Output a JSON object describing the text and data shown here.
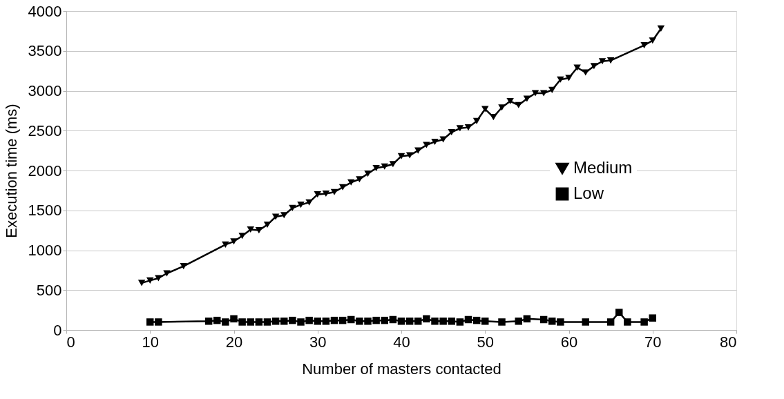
{
  "chart_data": {
    "type": "line",
    "xlabel": "Number of masters contacted",
    "ylabel": "Execution time (ms)",
    "xlim": [
      0,
      80
    ],
    "xticks": [
      0,
      10,
      20,
      30,
      40,
      50,
      60,
      70,
      80
    ],
    "ylim": [
      0,
      4000
    ],
    "yticks": [
      0,
      500,
      1000,
      1500,
      2000,
      2500,
      3000,
      3500,
      4000
    ],
    "grid": "y",
    "legend": "right",
    "line_style": "solid",
    "series": [
      {
        "name": "Medium",
        "color": "#000000",
        "marker": "triangle",
        "x": [
          9,
          10,
          11,
          12,
          14,
          19,
          20,
          21,
          22,
          23,
          24,
          25,
          26,
          27,
          28,
          29,
          30,
          31,
          32,
          33,
          34,
          35,
          36,
          37,
          38,
          39,
          40,
          41,
          42,
          43,
          44,
          45,
          46,
          47,
          48,
          49,
          50,
          51,
          52,
          53,
          54,
          55,
          56,
          57,
          58,
          59,
          60,
          61,
          62,
          63,
          64,
          65,
          69,
          70,
          71
        ],
        "values": [
          590,
          620,
          650,
          710,
          800,
          1070,
          1110,
          1180,
          1260,
          1250,
          1320,
          1420,
          1440,
          1530,
          1570,
          1600,
          1700,
          1710,
          1730,
          1790,
          1850,
          1890,
          1960,
          2030,
          2050,
          2080,
          2180,
          2190,
          2250,
          2320,
          2360,
          2390,
          2480,
          2530,
          2540,
          2620,
          2770,
          2670,
          2790,
          2870,
          2820,
          2900,
          2970,
          2970,
          3010,
          3140,
          3160,
          3290,
          3230,
          3310,
          3370,
          3380,
          3570,
          3630,
          3780
        ]
      },
      {
        "name": "Low",
        "color": "#000000",
        "marker": "square",
        "x": [
          10,
          11,
          17,
          18,
          19,
          20,
          21,
          22,
          23,
          24,
          25,
          26,
          27,
          28,
          29,
          30,
          31,
          32,
          33,
          34,
          35,
          36,
          37,
          38,
          39,
          40,
          41,
          42,
          43,
          44,
          45,
          46,
          47,
          48,
          49,
          50,
          52,
          54,
          55,
          57,
          58,
          59,
          62,
          65,
          66,
          67,
          69,
          70
        ],
        "values": [
          100,
          100,
          110,
          120,
          100,
          140,
          100,
          100,
          100,
          100,
          110,
          110,
          120,
          100,
          120,
          110,
          110,
          120,
          120,
          130,
          110,
          110,
          120,
          120,
          130,
          110,
          110,
          110,
          140,
          110,
          110,
          110,
          100,
          130,
          120,
          110,
          100,
          110,
          140,
          130,
          110,
          100,
          100,
          100,
          220,
          100,
          100,
          150
        ]
      }
    ]
  }
}
